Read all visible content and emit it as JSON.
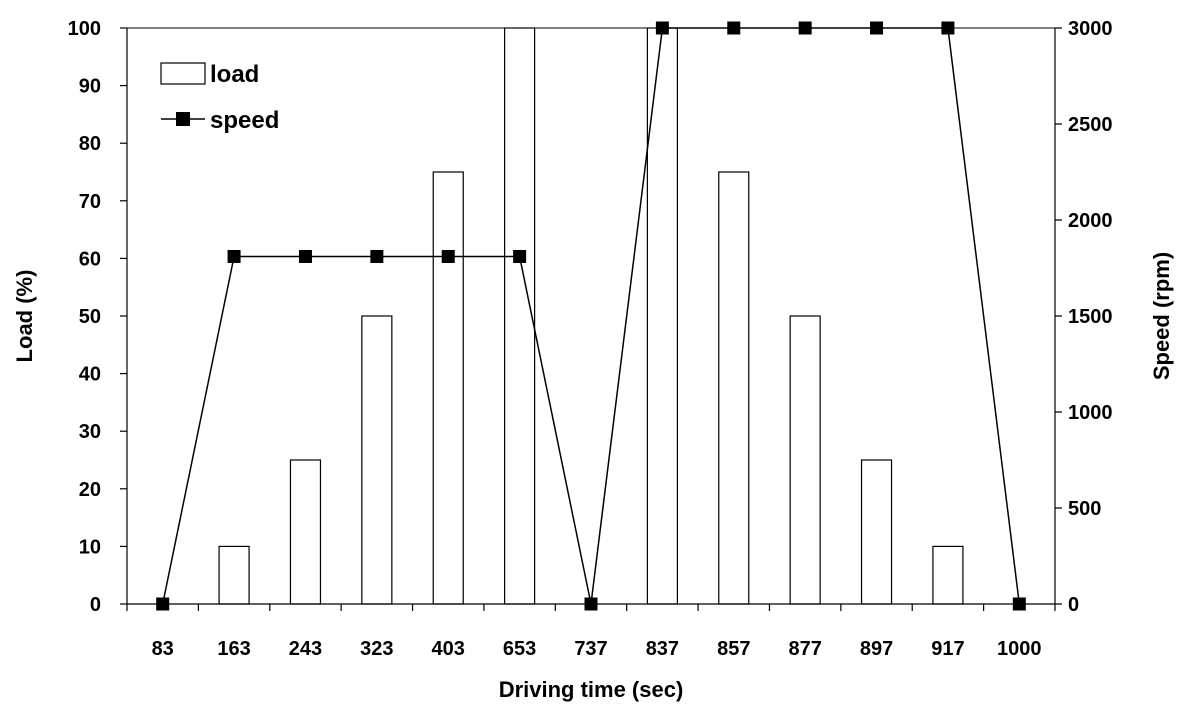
{
  "chart_data": {
    "type": "bar",
    "xlabel": "Driving time (sec)",
    "ylabel": "Load (%)",
    "y2label": "Speed (rpm)",
    "categories": [
      "83",
      "163",
      "243",
      "323",
      "403",
      "653",
      "737",
      "837",
      "857",
      "877",
      "897",
      "917",
      "1000"
    ],
    "ylim": [
      0,
      100
    ],
    "y2lim": [
      0,
      3000
    ],
    "yticks": [
      0,
      10,
      20,
      30,
      40,
      50,
      60,
      70,
      80,
      90,
      100
    ],
    "y2ticks": [
      0,
      500,
      1000,
      1500,
      2000,
      2500,
      3000
    ],
    "grid": false,
    "legend_position": "top-left",
    "series": [
      {
        "name": "load",
        "type": "bar",
        "axis": "left",
        "bar_fill": "#ffffff",
        "bar_stroke": "#000000",
        "points": [
          {
            "x": "163",
            "value": 10
          },
          {
            "x": "243",
            "value": 25
          },
          {
            "x": "323",
            "value": 50
          },
          {
            "x": "403",
            "value": 75
          },
          {
            "x": "653",
            "value": 100
          },
          {
            "x": "837",
            "value": 100
          },
          {
            "x": "857",
            "value": 75
          },
          {
            "x": "877",
            "value": 50
          },
          {
            "x": "897",
            "value": 25
          },
          {
            "x": "917",
            "value": 10
          }
        ]
      },
      {
        "name": "speed",
        "type": "line",
        "axis": "right",
        "marker": "square",
        "color": "#000000",
        "points": [
          {
            "x": "83",
            "value": 0
          },
          {
            "x": "163",
            "value": 1810
          },
          {
            "x": "243",
            "value": 1810
          },
          {
            "x": "323",
            "value": 1810
          },
          {
            "x": "403",
            "value": 1810
          },
          {
            "x": "653",
            "value": 1810
          },
          {
            "x": "737",
            "value": 0
          },
          {
            "x": "837",
            "value": 3000
          },
          {
            "x": "857",
            "value": 3000
          },
          {
            "x": "877",
            "value": 3000
          },
          {
            "x": "897",
            "value": 3000
          },
          {
            "x": "917",
            "value": 3000
          },
          {
            "x": "1000",
            "value": 0
          }
        ]
      }
    ]
  }
}
